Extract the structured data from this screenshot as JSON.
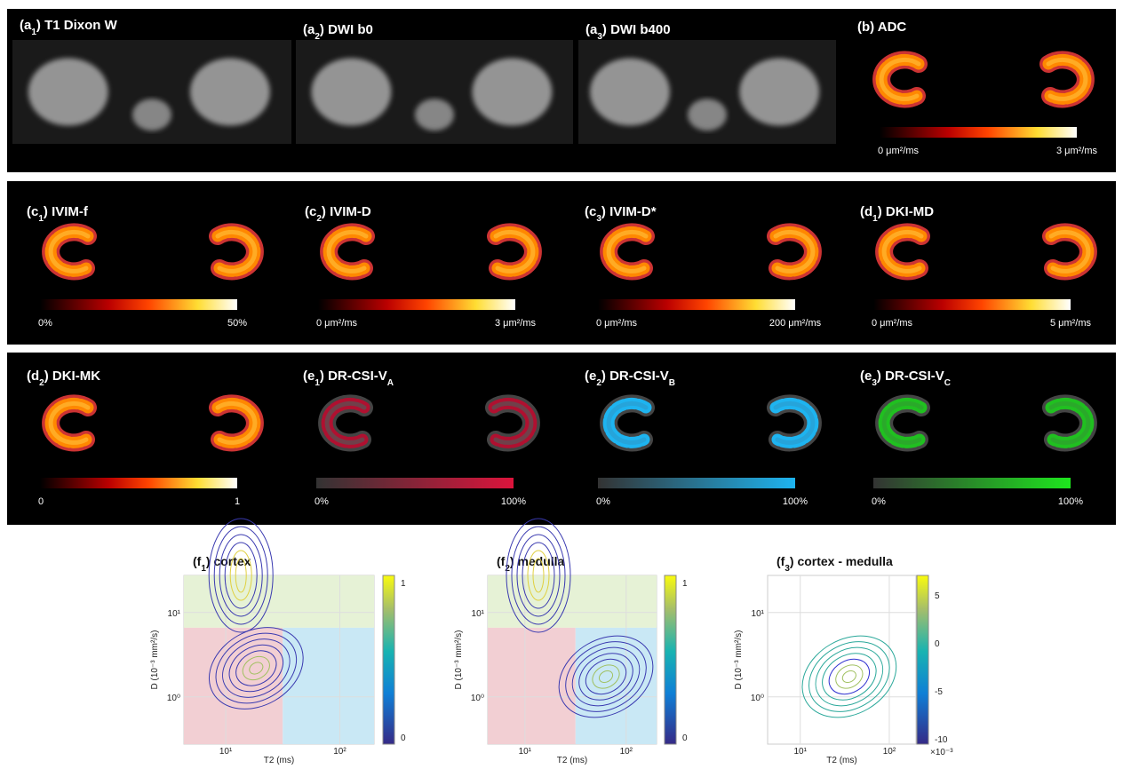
{
  "panels": [
    {
      "title": [
        {
          "t": "(a"
        },
        {
          "t": "1",
          "sub": true
        },
        {
          "t": ") T1 Dixon W"
        }
      ],
      "kind": "gray"
    },
    {
      "title": [
        {
          "t": "(a"
        },
        {
          "t": "2",
          "sub": true
        },
        {
          "t": ") DWI b0"
        }
      ],
      "kind": "gray"
    },
    {
      "title": [
        {
          "t": "(a"
        },
        {
          "t": "3",
          "sub": true
        },
        {
          "t": ") DWI b400"
        }
      ],
      "kind": "gray"
    },
    {
      "title": [
        {
          "t": "(b) ADC"
        }
      ],
      "kind": "hot",
      "cbar_min": "0 μm²/ms",
      "cbar_max": "3 μm²/ms"
    },
    {
      "title": [
        {
          "t": "(c"
        },
        {
          "t": "1",
          "sub": true
        },
        {
          "t": ") IVIM-f"
        }
      ],
      "kind": "hot",
      "cbar_min": "0%",
      "cbar_max": "50%"
    },
    {
      "title": [
        {
          "t": "(c"
        },
        {
          "t": "2",
          "sub": true
        },
        {
          "t": ") IVIM-D"
        }
      ],
      "kind": "hot",
      "cbar_min": "0 μm²/ms",
      "cbar_max": "3 μm²/ms"
    },
    {
      "title": [
        {
          "t": "(c"
        },
        {
          "t": "3",
          "sub": true
        },
        {
          "t": ") IVIM-D*"
        }
      ],
      "kind": "hot",
      "cbar_min": "0 μm²/ms",
      "cbar_max": "200 μm²/ms"
    },
    {
      "title": [
        {
          "t": "(d"
        },
        {
          "t": "1",
          "sub": true
        },
        {
          "t": ") DKI-MD"
        }
      ],
      "kind": "hot",
      "cbar_min": "0 μm²/ms",
      "cbar_max": "5 μm²/ms"
    },
    {
      "title": [
        {
          "t": "(d"
        },
        {
          "t": "2",
          "sub": true
        },
        {
          "t": ") DKI-MK"
        }
      ],
      "kind": "hot",
      "cbar_min": "0",
      "cbar_max": "1"
    },
    {
      "title": [
        {
          "t": "(e"
        },
        {
          "t": "1",
          "sub": true
        },
        {
          "t": ") DR-CSI-V"
        },
        {
          "t": "A",
          "sub": true
        }
      ],
      "kind": "red",
      "cbar_min": "0%",
      "cbar_max": "100%"
    },
    {
      "title": [
        {
          "t": "(e"
        },
        {
          "t": "2",
          "sub": true
        },
        {
          "t": ") DR-CSI-V"
        },
        {
          "t": "B",
          "sub": true
        }
      ],
      "kind": "blue",
      "cbar_min": "0%",
      "cbar_max": "100%"
    },
    {
      "title": [
        {
          "t": "(e"
        },
        {
          "t": "3",
          "sub": true
        },
        {
          "t": ") DR-CSI-V"
        },
        {
          "t": "C",
          "sub": true
        }
      ],
      "kind": "green",
      "cbar_min": "0%",
      "cbar_max": "100%"
    }
  ],
  "plots": [
    {
      "title": [
        {
          "t": "(f"
        },
        {
          "t": "1",
          "sub": true
        },
        {
          "t": ") cortex"
        }
      ],
      "ylabel": "D (10⁻³ mm²/s)",
      "xlabel": "T2 (ms)",
      "xticks": [
        "10¹",
        "10²"
      ],
      "yticks": [
        "10¹",
        "10⁰"
      ],
      "regions": true,
      "cbar_ticks": [
        "1",
        "0"
      ]
    },
    {
      "title": [
        {
          "t": "(f"
        },
        {
          "t": "2",
          "sub": true
        },
        {
          "t": ") medulla"
        }
      ],
      "ylabel": "D (10⁻³ mm²/s)",
      "xlabel": "T2 (ms)",
      "xticks": [
        "10¹",
        "10²"
      ],
      "yticks": [
        "10¹",
        "10⁰"
      ],
      "regions": true,
      "cbar_ticks": [
        "1",
        "0"
      ]
    },
    {
      "title": [
        {
          "t": "(f"
        },
        {
          "t": "3",
          "sub": true
        },
        {
          "t": ") cortex - medulla"
        }
      ],
      "ylabel": "D (10⁻³ mm²/s)",
      "xlabel": "T2 (ms)",
      "xticks": [
        "10¹",
        "10²"
      ],
      "yticks": [
        "10¹",
        "10⁰"
      ],
      "regions": false,
      "cbar_ticks": [
        "5",
        "0",
        "-5",
        "-10"
      ],
      "cbar_scale": "×10⁻³"
    }
  ]
}
